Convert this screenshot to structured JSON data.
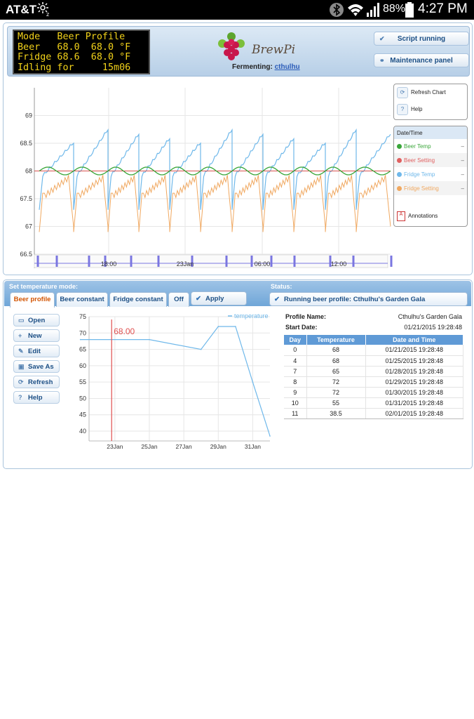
{
  "status_bar": {
    "carrier": "AT&T",
    "battery": "88%",
    "time": "4:27 PM"
  },
  "header": {
    "lcd_lines": [
      "Mode   Beer Profile",
      "Beer   68.0  68.0 °F",
      "Fridge 68.6  68.0 °F",
      "Idling for     15m06"
    ],
    "logo_text": "BrewPi",
    "fermenting_label": "Fermenting:",
    "fermenting_name": "cthulhu",
    "script_button": "Script running",
    "maintenance_button": "Maintenance panel"
  },
  "side_controls": {
    "refresh": "Refresh Chart",
    "help": "Help"
  },
  "legend": {
    "header": "Date/Time",
    "items": [
      {
        "label": "Beer Temp",
        "color": "#3aa63a",
        "value": "–"
      },
      {
        "label": "Beer Setting",
        "color": "#e06060",
        "value": "–"
      },
      {
        "label": "Fridge Temp",
        "color": "#6fb8ea",
        "value": "–"
      },
      {
        "label": "Fridge Setting",
        "color": "#f0a860",
        "value": "–"
      }
    ],
    "annotations": "Annotations"
  },
  "temp_chart": {
    "y_ticks": [
      "69",
      "68.5",
      "68",
      "67.5",
      "67",
      "66.5"
    ],
    "x_ticks": [
      "18:00",
      "23Jan",
      "06:00",
      "12:00"
    ],
    "colors": {
      "beer_temp": "#3aa63a",
      "beer_setting": "#d9534f",
      "fridge_temp": "#6fb8ea",
      "fridge_setting": "#f0a860"
    }
  },
  "mode_bar": {
    "label": "Set temperature mode:",
    "tabs": [
      "Beer profile",
      "Beer constant",
      "Fridge constant",
      "Off"
    ],
    "apply": "Apply",
    "status_label": "Status:",
    "status_text": "Running beer profile: Cthulhu's Garden Gala"
  },
  "profile_buttons": [
    "Open",
    "New",
    "Edit",
    "Save As",
    "Refresh",
    "Help"
  ],
  "profile_info": {
    "name_label": "Profile Name:",
    "name": "Cthulhu's Garden Gala",
    "start_label": "Start Date:",
    "start": "01/21/2015 19:28:48"
  },
  "profile_table": {
    "headers": [
      "Day",
      "Temperature",
      "Date and Time"
    ],
    "rows": [
      [
        "0",
        "68",
        "01/21/2015 19:28:48"
      ],
      [
        "4",
        "68",
        "01/25/2015 19:28:48"
      ],
      [
        "7",
        "65",
        "01/28/2015 19:28:48"
      ],
      [
        "8",
        "72",
        "01/29/2015 19:28:48"
      ],
      [
        "9",
        "72",
        "01/30/2015 19:28:48"
      ],
      [
        "10",
        "55",
        "01/31/2015 19:28:48"
      ],
      [
        "11",
        "38.5",
        "02/01/2015 19:28:48"
      ]
    ]
  },
  "chart_data": {
    "type": "line",
    "title": "",
    "xlabel": "",
    "ylabel": "",
    "x_ticks": [
      "23Jan",
      "25Jan",
      "27Jan",
      "29Jan",
      "31Jan"
    ],
    "y_ticks": [
      40,
      45,
      50,
      55,
      60,
      65,
      70,
      75
    ],
    "ylim": [
      37,
      75
    ],
    "series": [
      {
        "name": "temperature",
        "x": [
          "01/21/2015",
          "01/25/2015",
          "01/28/2015",
          "01/29/2015",
          "01/30/2015",
          "01/31/2015",
          "02/01/2015"
        ],
        "values": [
          68,
          68,
          65,
          72,
          72,
          55,
          38.5
        ]
      }
    ],
    "marker_label": "68.00",
    "grid": true,
    "legend_position": "top-right"
  }
}
